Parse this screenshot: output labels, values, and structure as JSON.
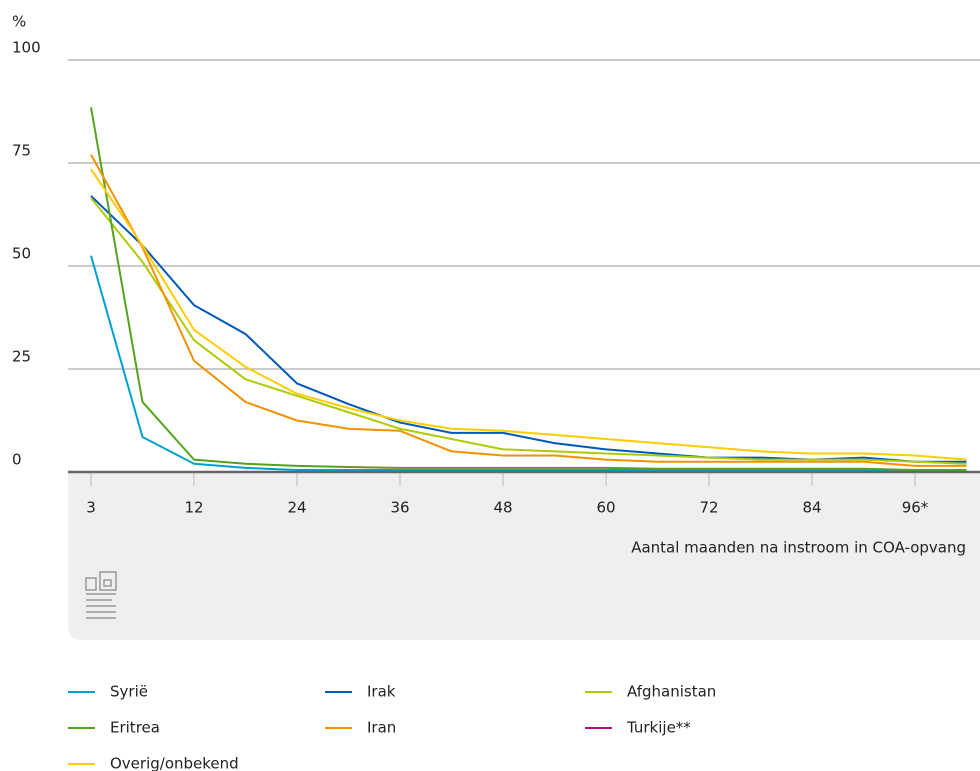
{
  "chart_data": {
    "type": "line",
    "y_label": "%",
    "x_label": "Aantal maanden na instroom in COA-opvang",
    "categories": [
      "3",
      null,
      "12",
      null,
      "24",
      null,
      "36",
      null,
      "48",
      null,
      "60",
      null,
      "72",
      null,
      "84",
      null,
      "96*",
      null
    ],
    "ylim": [
      0,
      100
    ],
    "yticks": [
      0,
      25,
      50,
      75,
      100
    ],
    "grid": true,
    "series": [
      {
        "name": "Syrië",
        "color": "#00a1cd",
        "values": [
          52.5,
          8.5,
          2,
          1,
          0.5,
          0.5,
          0.5,
          0.5,
          0.5,
          0.5,
          0.5,
          0.5,
          0.5,
          0.5,
          0.5,
          0.5,
          0.5,
          0.5
        ]
      },
      {
        "name": "Irak",
        "color": "#0058b8",
        "values": [
          67,
          55,
          40.5,
          33.5,
          21.5,
          16.5,
          12,
          9.5,
          9.5,
          7,
          5.5,
          4.5,
          3.5,
          3.5,
          3,
          3.5,
          2.5,
          2.5
        ]
      },
      {
        "name": "Afghanistan",
        "color": "#afcb05",
        "values": [
          66.5,
          51,
          32,
          22.5,
          18.5,
          14.5,
          10.5,
          8,
          5.5,
          5,
          4.5,
          4,
          3.5,
          3,
          3,
          3,
          2.5,
          2
        ]
      },
      {
        "name": "Eritrea",
        "color": "#53a31d",
        "values": [
          88.5,
          17,
          3,
          2,
          1.5,
          1.2,
          1,
          1,
          1,
          1,
          1,
          0.8,
          0.8,
          0.8,
          0.8,
          0.8,
          0.5,
          0.5
        ]
      },
      {
        "name": "Iran",
        "color": "#f39200",
        "values": [
          77,
          54.5,
          27,
          17,
          12.5,
          10.5,
          10,
          5,
          4,
          4,
          3,
          2.5,
          2.5,
          2.5,
          2.5,
          2.5,
          1.5,
          1.5
        ]
      },
      {
        "name": "Turkije**",
        "color": "#af0e80",
        "values": [
          0,
          0,
          0,
          0,
          0,
          0,
          0,
          0,
          0,
          0,
          0,
          0,
          0,
          0,
          0,
          0,
          0,
          0
        ]
      },
      {
        "name": "Overig/onbekend",
        "color": "#ffcc00",
        "values": [
          73.5,
          55,
          34.5,
          25.5,
          19,
          15.5,
          12.5,
          10.5,
          10,
          9,
          8,
          7,
          6,
          5,
          4.5,
          4.5,
          4,
          3
        ]
      }
    ]
  }
}
